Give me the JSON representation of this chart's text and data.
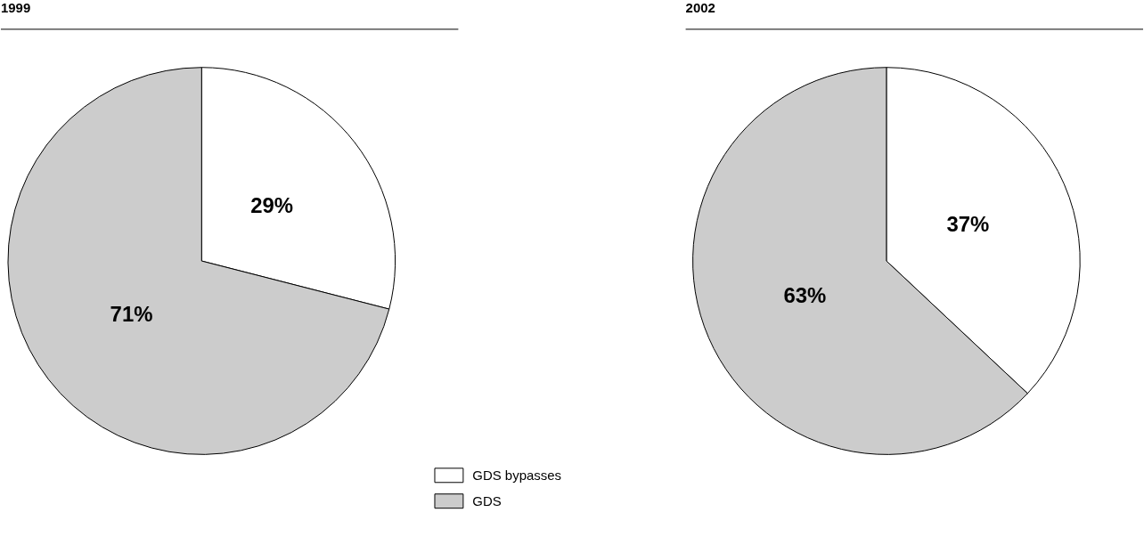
{
  "chart_data": [
    {
      "type": "pie",
      "title": "1999",
      "categories": [
        "GDS bypasses",
        "GDS"
      ],
      "values": [
        29,
        71
      ],
      "colors": [
        "#ffffff",
        "#cccccc"
      ],
      "value_labels": [
        "29%",
        "71%"
      ],
      "legend": "bottom"
    },
    {
      "type": "pie",
      "title": "2002",
      "categories": [
        null,
        null
      ],
      "values": [
        37,
        63
      ],
      "colors": [
        "#ffffff",
        "#cccccc"
      ],
      "value_labels": [
        "37%",
        "63%"
      ]
    }
  ]
}
